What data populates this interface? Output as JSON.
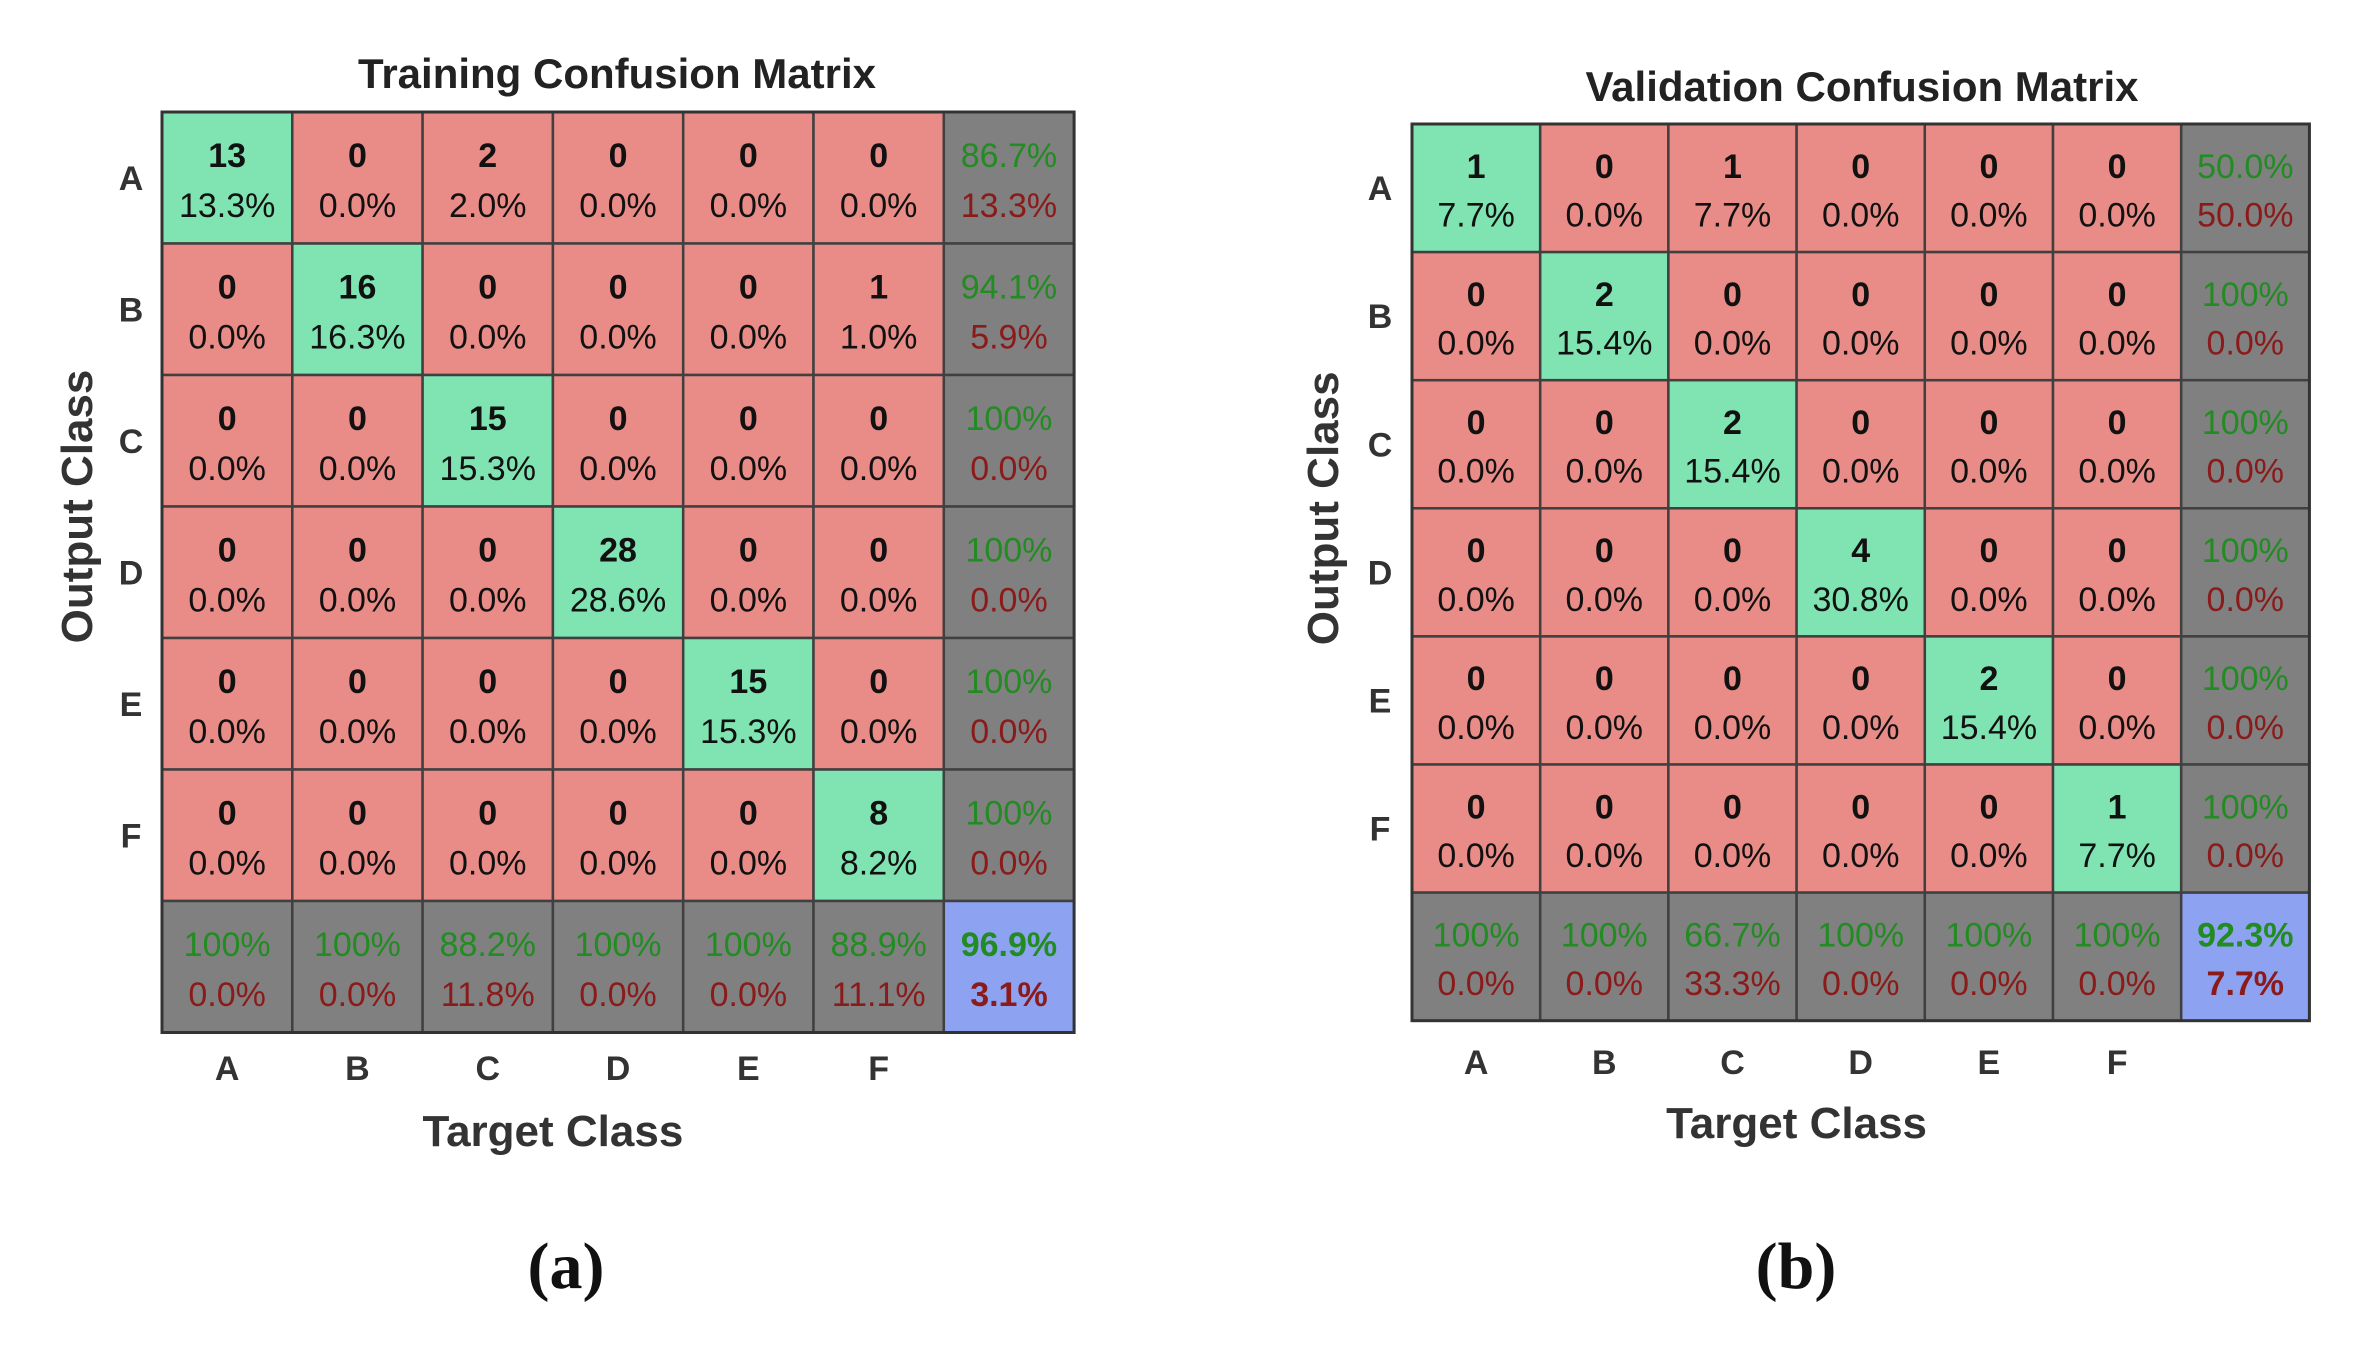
{
  "chart_data": [
    {
      "type": "heatmap",
      "title": "Training Confusion Matrix",
      "xlabel": "Target Class",
      "ylabel": "Output Class",
      "classes": [
        "A",
        "B",
        "C",
        "D",
        "E",
        "F"
      ],
      "cells": [
        [
          {
            "count": "13",
            "pct": "13.3%"
          },
          {
            "count": "0",
            "pct": "0.0%"
          },
          {
            "count": "2",
            "pct": "2.0%"
          },
          {
            "count": "0",
            "pct": "0.0%"
          },
          {
            "count": "0",
            "pct": "0.0%"
          },
          {
            "count": "0",
            "pct": "0.0%"
          }
        ],
        [
          {
            "count": "0",
            "pct": "0.0%"
          },
          {
            "count": "16",
            "pct": "16.3%"
          },
          {
            "count": "0",
            "pct": "0.0%"
          },
          {
            "count": "0",
            "pct": "0.0%"
          },
          {
            "count": "0",
            "pct": "0.0%"
          },
          {
            "count": "1",
            "pct": "1.0%"
          }
        ],
        [
          {
            "count": "0",
            "pct": "0.0%"
          },
          {
            "count": "0",
            "pct": "0.0%"
          },
          {
            "count": "15",
            "pct": "15.3%"
          },
          {
            "count": "0",
            "pct": "0.0%"
          },
          {
            "count": "0",
            "pct": "0.0%"
          },
          {
            "count": "0",
            "pct": "0.0%"
          }
        ],
        [
          {
            "count": "0",
            "pct": "0.0%"
          },
          {
            "count": "0",
            "pct": "0.0%"
          },
          {
            "count": "0",
            "pct": "0.0%"
          },
          {
            "count": "28",
            "pct": "28.6%"
          },
          {
            "count": "0",
            "pct": "0.0%"
          },
          {
            "count": "0",
            "pct": "0.0%"
          }
        ],
        [
          {
            "count": "0",
            "pct": "0.0%"
          },
          {
            "count": "0",
            "pct": "0.0%"
          },
          {
            "count": "0",
            "pct": "0.0%"
          },
          {
            "count": "0",
            "pct": "0.0%"
          },
          {
            "count": "15",
            "pct": "15.3%"
          },
          {
            "count": "0",
            "pct": "0.0%"
          }
        ],
        [
          {
            "count": "0",
            "pct": "0.0%"
          },
          {
            "count": "0",
            "pct": "0.0%"
          },
          {
            "count": "0",
            "pct": "0.0%"
          },
          {
            "count": "0",
            "pct": "0.0%"
          },
          {
            "count": "0",
            "pct": "0.0%"
          },
          {
            "count": "8",
            "pct": "8.2%"
          }
        ]
      ],
      "row_summary": [
        {
          "correct": "86.7%",
          "wrong": "13.3%"
        },
        {
          "correct": "94.1%",
          "wrong": "5.9%"
        },
        {
          "correct": "100%",
          "wrong": "0.0%"
        },
        {
          "correct": "100%",
          "wrong": "0.0%"
        },
        {
          "correct": "100%",
          "wrong": "0.0%"
        },
        {
          "correct": "100%",
          "wrong": "0.0%"
        }
      ],
      "col_summary": [
        {
          "correct": "100%",
          "wrong": "0.0%"
        },
        {
          "correct": "100%",
          "wrong": "0.0%"
        },
        {
          "correct": "88.2%",
          "wrong": "11.8%"
        },
        {
          "correct": "100%",
          "wrong": "0.0%"
        },
        {
          "correct": "100%",
          "wrong": "0.0%"
        },
        {
          "correct": "88.9%",
          "wrong": "11.1%"
        }
      ],
      "overall": {
        "correct": "96.9%",
        "wrong": "3.1%"
      },
      "caption": "(a)"
    },
    {
      "type": "heatmap",
      "title": "Validation Confusion Matrix",
      "xlabel": "Target Class",
      "ylabel": "Output Class",
      "classes": [
        "A",
        "B",
        "C",
        "D",
        "E",
        "F"
      ],
      "cells": [
        [
          {
            "count": "1",
            "pct": "7.7%"
          },
          {
            "count": "0",
            "pct": "0.0%"
          },
          {
            "count": "1",
            "pct": "7.7%"
          },
          {
            "count": "0",
            "pct": "0.0%"
          },
          {
            "count": "0",
            "pct": "0.0%"
          },
          {
            "count": "0",
            "pct": "0.0%"
          }
        ],
        [
          {
            "count": "0",
            "pct": "0.0%"
          },
          {
            "count": "2",
            "pct": "15.4%"
          },
          {
            "count": "0",
            "pct": "0.0%"
          },
          {
            "count": "0",
            "pct": "0.0%"
          },
          {
            "count": "0",
            "pct": "0.0%"
          },
          {
            "count": "0",
            "pct": "0.0%"
          }
        ],
        [
          {
            "count": "0",
            "pct": "0.0%"
          },
          {
            "count": "0",
            "pct": "0.0%"
          },
          {
            "count": "2",
            "pct": "15.4%"
          },
          {
            "count": "0",
            "pct": "0.0%"
          },
          {
            "count": "0",
            "pct": "0.0%"
          },
          {
            "count": "0",
            "pct": "0.0%"
          }
        ],
        [
          {
            "count": "0",
            "pct": "0.0%"
          },
          {
            "count": "0",
            "pct": "0.0%"
          },
          {
            "count": "0",
            "pct": "0.0%"
          },
          {
            "count": "4",
            "pct": "30.8%"
          },
          {
            "count": "0",
            "pct": "0.0%"
          },
          {
            "count": "0",
            "pct": "0.0%"
          }
        ],
        [
          {
            "count": "0",
            "pct": "0.0%"
          },
          {
            "count": "0",
            "pct": "0.0%"
          },
          {
            "count": "0",
            "pct": "0.0%"
          },
          {
            "count": "0",
            "pct": "0.0%"
          },
          {
            "count": "2",
            "pct": "15.4%"
          },
          {
            "count": "0",
            "pct": "0.0%"
          }
        ],
        [
          {
            "count": "0",
            "pct": "0.0%"
          },
          {
            "count": "0",
            "pct": "0.0%"
          },
          {
            "count": "0",
            "pct": "0.0%"
          },
          {
            "count": "0",
            "pct": "0.0%"
          },
          {
            "count": "0",
            "pct": "0.0%"
          },
          {
            "count": "1",
            "pct": "7.7%"
          }
        ]
      ],
      "row_summary": [
        {
          "correct": "50.0%",
          "wrong": "50.0%"
        },
        {
          "correct": "100%",
          "wrong": "0.0%"
        },
        {
          "correct": "100%",
          "wrong": "0.0%"
        },
        {
          "correct": "100%",
          "wrong": "0.0%"
        },
        {
          "correct": "100%",
          "wrong": "0.0%"
        },
        {
          "correct": "100%",
          "wrong": "0.0%"
        }
      ],
      "col_summary": [
        {
          "correct": "100%",
          "wrong": "0.0%"
        },
        {
          "correct": "100%",
          "wrong": "0.0%"
        },
        {
          "correct": "66.7%",
          "wrong": "33.3%"
        },
        {
          "correct": "100%",
          "wrong": "0.0%"
        },
        {
          "correct": "100%",
          "wrong": "0.0%"
        },
        {
          "correct": "100%",
          "wrong": "0.0%"
        }
      ],
      "overall": {
        "correct": "92.3%",
        "wrong": "7.7%"
      },
      "caption": "(b)"
    }
  ],
  "colors": {
    "diagonal": "#7fe3b2",
    "off_diagonal": "#e98c87",
    "summary": "#808080",
    "overall": "#8da2f0",
    "correct_text": "#228b22",
    "wrong_text": "#8b1a1a",
    "cell_text": "#111111",
    "grid_line": "#404040"
  }
}
